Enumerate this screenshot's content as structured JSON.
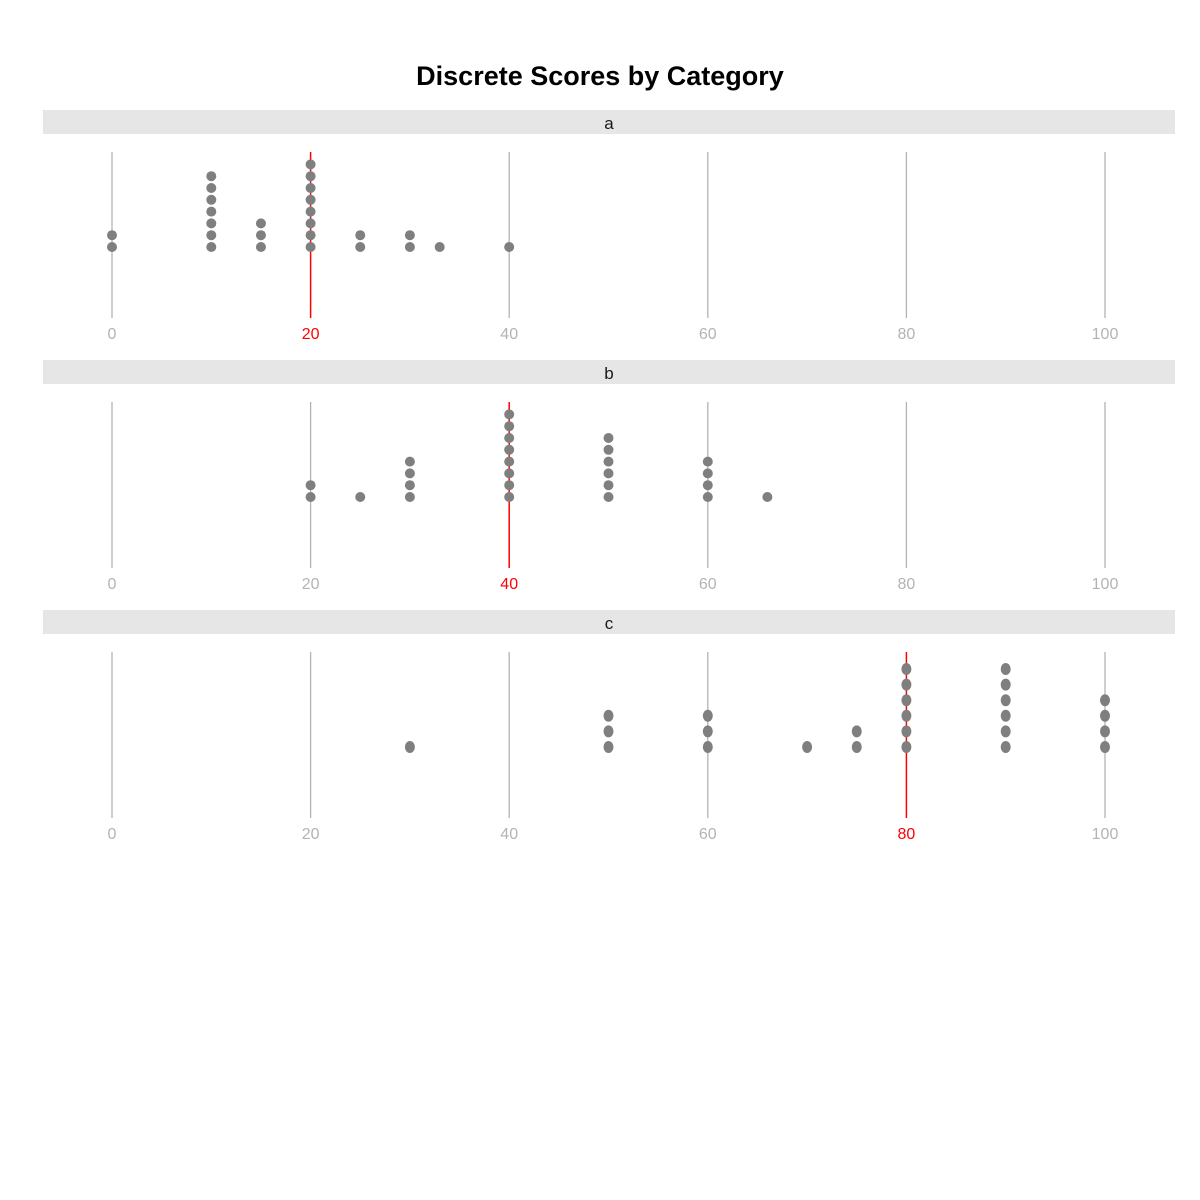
{
  "chart_data": {
    "type": "dotplot",
    "title": "Discrete Scores by Category",
    "xlabel": "",
    "ylabel": "",
    "xlim": [
      0,
      100
    ],
    "x_ticks": [
      0,
      20,
      40,
      60,
      80,
      100
    ],
    "grid": "vertical major lines only",
    "colors": {
      "dot": "#7f7f7f",
      "grid": "#b3b3b3",
      "highlight": "#ff0000",
      "strip": "#e6e6e6",
      "tick_label": "#b3b3b3"
    },
    "panels": [
      {
        "label": "a",
        "highlight": 20,
        "points": [
          {
            "x": 0,
            "count": 2
          },
          {
            "x": 10,
            "count": 7
          },
          {
            "x": 15,
            "count": 3
          },
          {
            "x": 20,
            "count": 8
          },
          {
            "x": 25,
            "count": 2
          },
          {
            "x": 30,
            "count": 2
          },
          {
            "x": 33,
            "count": 1
          },
          {
            "x": 40,
            "count": 1
          }
        ]
      },
      {
        "label": "b",
        "highlight": 40,
        "points": [
          {
            "x": 20,
            "count": 2
          },
          {
            "x": 25,
            "count": 1
          },
          {
            "x": 30,
            "count": 4
          },
          {
            "x": 40,
            "count": 8
          },
          {
            "x": 50,
            "count": 6
          },
          {
            "x": 60,
            "count": 4
          },
          {
            "x": 66,
            "count": 1
          }
        ]
      },
      {
        "label": "c",
        "highlight": 80,
        "points": [
          {
            "x": 30,
            "count": 1
          },
          {
            "x": 50,
            "count": 3
          },
          {
            "x": 60,
            "count": 3
          },
          {
            "x": 70,
            "count": 1
          },
          {
            "x": 75,
            "count": 2
          },
          {
            "x": 80,
            "count": 6
          },
          {
            "x": 90,
            "count": 6
          },
          {
            "x": 100,
            "count": 4
          }
        ]
      }
    ]
  }
}
